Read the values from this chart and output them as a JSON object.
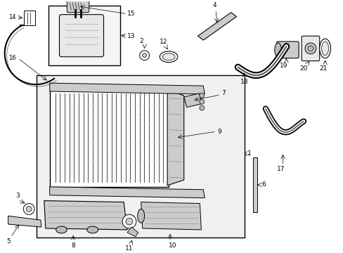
{
  "white": "#ffffff",
  "black": "#000000",
  "light_gray": "#e8e8e8",
  "mid_gray": "#cccccc",
  "dark_gray": "#888888",
  "fig_w": 4.89,
  "fig_h": 3.6,
  "dpi": 100
}
